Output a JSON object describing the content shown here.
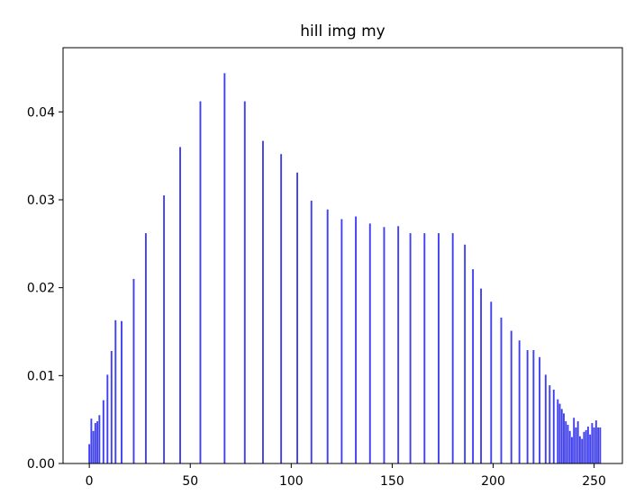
{
  "chart_data": {
    "type": "bar",
    "title": "hill img my",
    "xlabel": "",
    "ylabel": "",
    "xlim": [
      -13,
      264
    ],
    "ylim": [
      0,
      0.0473
    ],
    "xticks": [
      0,
      50,
      100,
      150,
      200,
      250
    ],
    "yticks": [
      0.0,
      0.01,
      0.02,
      0.03,
      0.04
    ],
    "xtick_labels": [
      "0",
      "50",
      "100",
      "150",
      "200",
      "250"
    ],
    "ytick_labels": [
      "0.00",
      "0.01",
      "0.02",
      "0.03",
      "0.04"
    ],
    "grid": false,
    "bar_color": "#4040f0",
    "x": [
      0,
      1,
      2,
      3,
      4,
      5,
      7,
      9,
      11,
      13,
      16,
      22,
      28,
      37,
      45,
      55,
      67,
      77,
      86,
      95,
      103,
      110,
      118,
      125,
      132,
      139,
      146,
      153,
      159,
      166,
      173,
      180,
      186,
      190,
      194,
      199,
      204,
      209,
      213,
      217,
      220,
      223,
      226,
      228,
      230,
      232,
      233,
      234,
      235,
      236,
      237,
      238,
      239,
      240,
      241,
      242,
      243,
      244,
      245,
      246,
      247,
      248,
      249,
      250,
      251,
      252,
      253
    ],
    "values": [
      0.0022,
      0.0051,
      0.0037,
      0.0046,
      0.0048,
      0.0055,
      0.0072,
      0.0101,
      0.0128,
      0.0163,
      0.0162,
      0.021,
      0.0262,
      0.0305,
      0.036,
      0.0412,
      0.0444,
      0.0412,
      0.0367,
      0.0352,
      0.0331,
      0.0299,
      0.0289,
      0.0278,
      0.0281,
      0.0273,
      0.0269,
      0.027,
      0.0262,
      0.0262,
      0.0262,
      0.0262,
      0.0249,
      0.0221,
      0.0199,
      0.0184,
      0.0166,
      0.0151,
      0.014,
      0.0129,
      0.0129,
      0.0121,
      0.0101,
      0.0089,
      0.0084,
      0.0073,
      0.0068,
      0.0062,
      0.0057,
      0.0048,
      0.0044,
      0.0037,
      0.003,
      0.0052,
      0.0041,
      0.0048,
      0.0031,
      0.0028,
      0.0036,
      0.0038,
      0.0042,
      0.0033,
      0.0046,
      0.0041,
      0.0049,
      0.0041,
      0.0041
    ]
  }
}
